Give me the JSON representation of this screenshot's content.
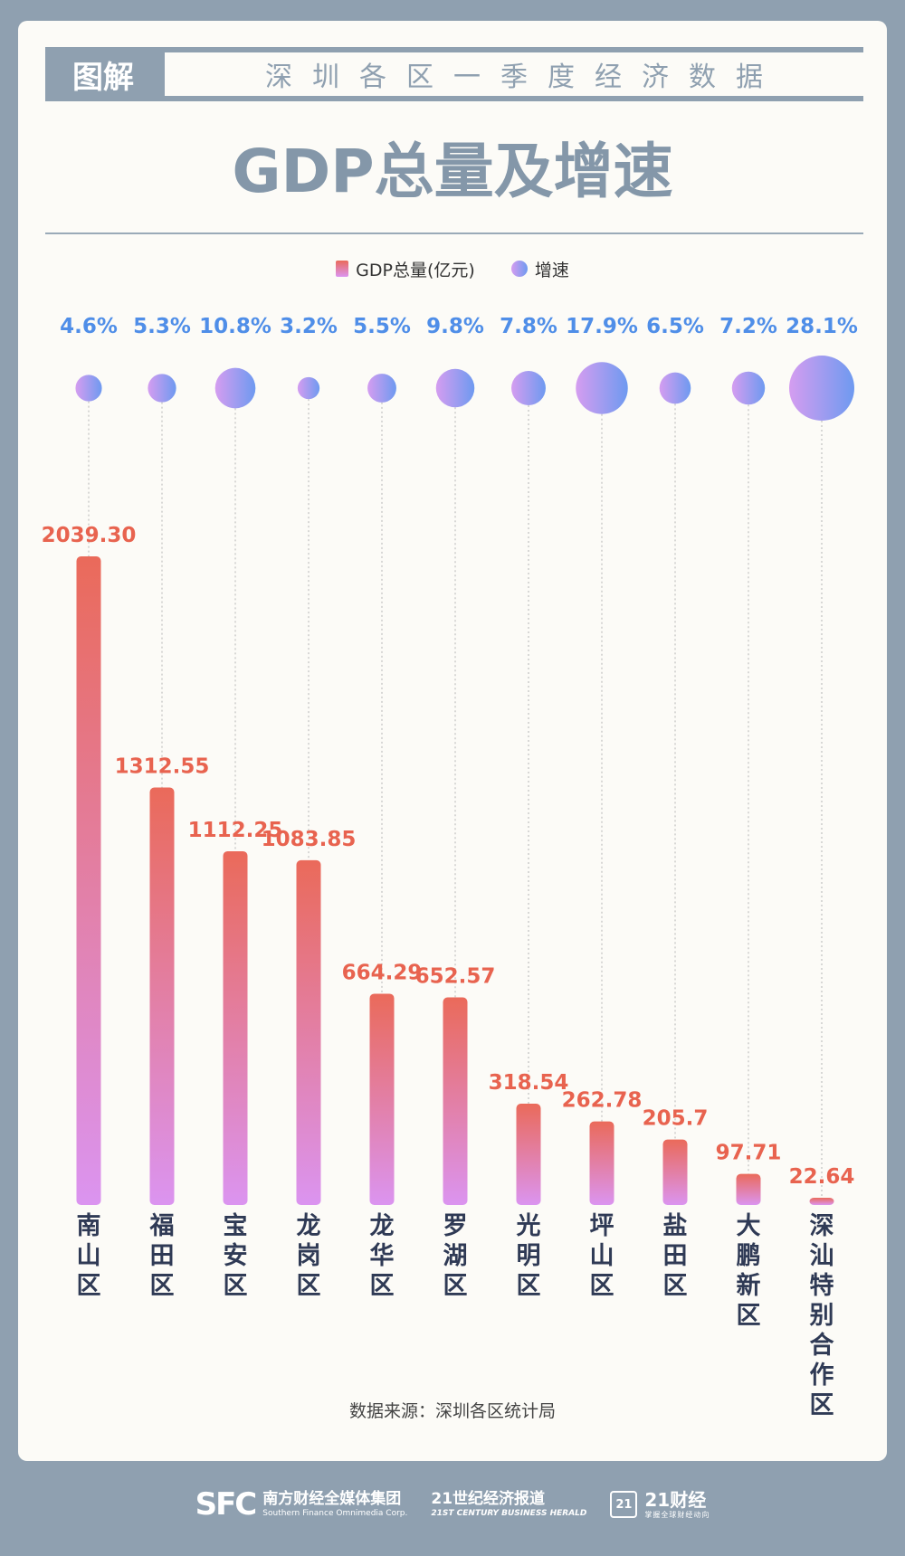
{
  "header": {
    "tag": "图解",
    "subtitle": "深圳各区一季度经济数据",
    "title": "GDP总量及增速"
  },
  "legend": {
    "gdp": "GDP总量(亿元)",
    "growth": "增速"
  },
  "source": "数据来源：深圳各区统计局",
  "footer": {
    "sfc_logo": "SFC",
    "sfc_cn": "南方财经全媒体集团",
    "sfc_en": "Southern Finance Omnimedia Corp.",
    "herald_cn": "21世纪经济报道",
    "herald_en": "21ST CENTURY BUSINESS HERALD",
    "app_badge": "21",
    "app_cn": "21财经",
    "app_en": "掌握全球财经动向"
  },
  "colors": {
    "bar_top": "#ea6a5a",
    "bar_bottom": "#db94f0",
    "bubble_left": "#d59df0",
    "bubble_right": "#6e9af0",
    "growth_label": "#4f8ee8",
    "gdp_label": "#e8634f",
    "category_label": "#2f3a55"
  },
  "chart_data": {
    "type": "bar",
    "categories": [
      "南山区",
      "福田区",
      "宝安区",
      "龙岗区",
      "龙华区",
      "罗湖区",
      "光明区",
      "坪山区",
      "盐田区",
      "大鹏新区",
      "深汕特别合作区"
    ],
    "series": [
      {
        "name": "GDP总量(亿元)",
        "values": [
          2039.3,
          1312.55,
          1112.25,
          1083.85,
          664.29,
          652.57,
          318.54,
          262.78,
          205.7,
          97.71,
          22.64
        ],
        "labels": [
          "2039.30",
          "1312.55",
          "1112.25",
          "1083.85",
          "664.29",
          "652.57",
          "318.54",
          "262.78",
          "205.7",
          "97.71",
          "22.64"
        ]
      },
      {
        "name": "增速",
        "type": "bubble",
        "values": [
          4.6,
          5.3,
          10.8,
          3.2,
          5.5,
          9.8,
          7.8,
          17.9,
          6.5,
          7.2,
          28.1
        ],
        "labels": [
          "4.6%",
          "5.3%",
          "10.8%",
          "3.2%",
          "5.5%",
          "9.8%",
          "7.8%",
          "17.9%",
          "6.5%",
          "7.2%",
          "28.1%"
        ]
      }
    ],
    "legend": "top-center",
    "grid": false
  }
}
